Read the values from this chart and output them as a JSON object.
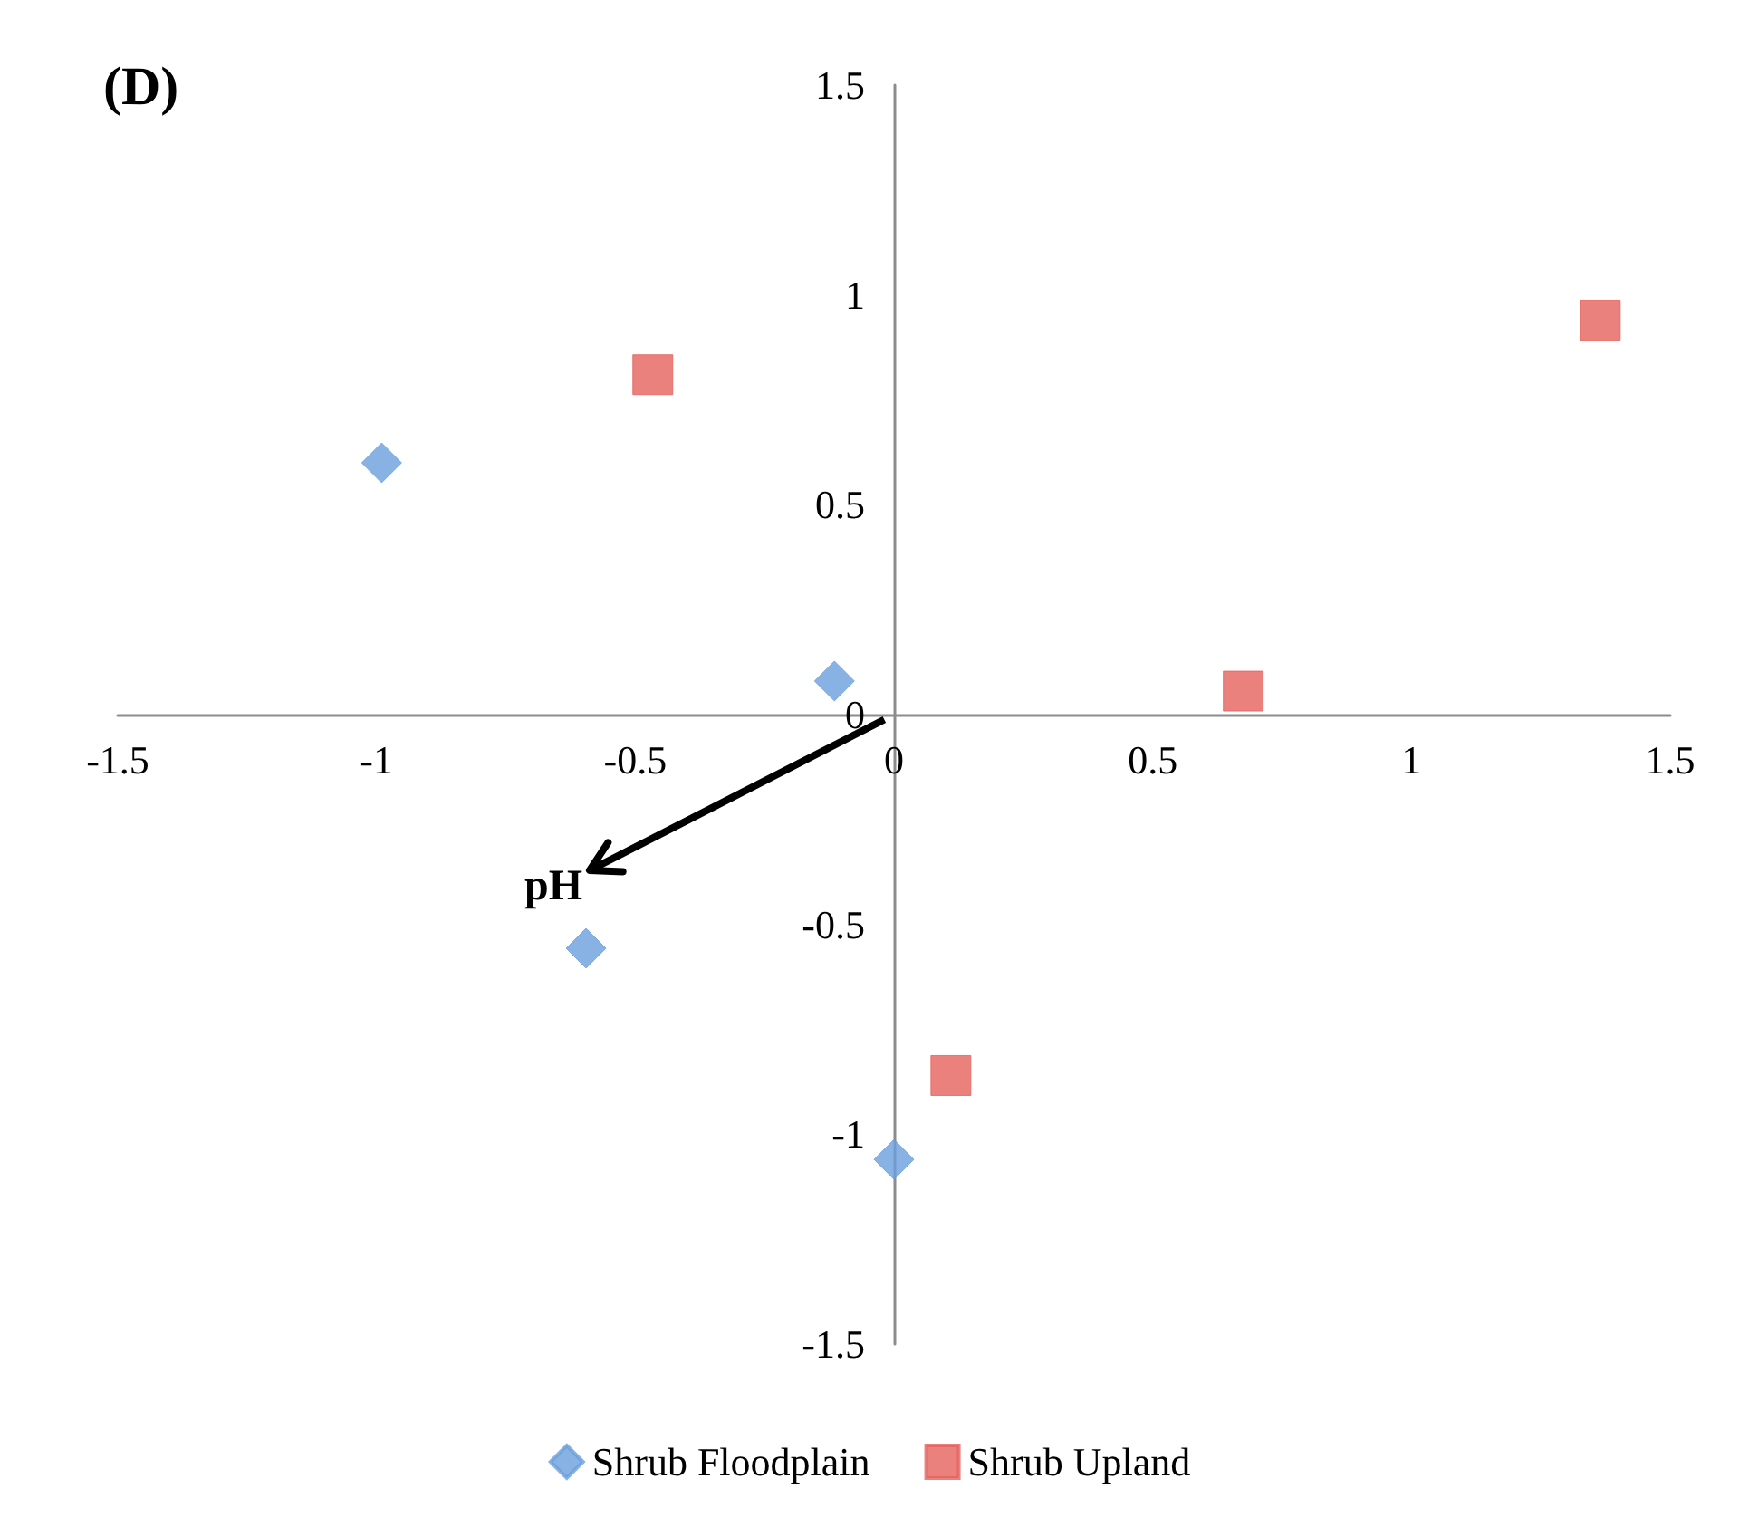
{
  "chart_data": {
    "type": "scatter",
    "title": "(D)",
    "series": [
      {
        "name": "Shrub Floodplain",
        "color": "#6a9fdc",
        "marker": "diamond",
        "x": [
          -0.99,
          -0.115,
          -0.595,
          0
        ],
        "values": [
          0.6,
          0.08,
          -0.557,
          -1.06
        ]
      },
      {
        "name": "Shrub Upland",
        "color": "#e5625c",
        "marker": "square",
        "x": [
          -0.466,
          1.365,
          0.675,
          0.11
        ],
        "values": [
          0.81,
          0.94,
          0.056,
          -0.86
        ]
      }
    ],
    "annotations": [
      "pH"
    ],
    "xlim": [
      -1.5,
      1.5
    ],
    "xticks": [
      -1.5,
      -1,
      -0.5,
      0,
      0.5,
      1,
      1.5
    ],
    "ylim": [
      -1.5,
      1.5
    ],
    "yticks": [
      -1.5,
      -1,
      -0.5,
      0,
      0.5,
      1,
      1.5
    ],
    "legend": "bottom"
  }
}
